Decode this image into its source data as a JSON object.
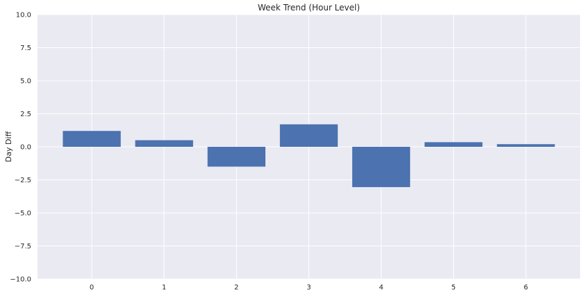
{
  "chart_data": {
    "type": "bar",
    "title": "Week Trend (Hour Level)",
    "xlabel": "",
    "ylabel": "Day Diff",
    "categories": [
      "0",
      "1",
      "2",
      "3",
      "4",
      "5",
      "6"
    ],
    "values": [
      1.2,
      0.5,
      -1.5,
      1.7,
      -3.05,
      0.35,
      0.2
    ],
    "ylim": [
      -10.0,
      10.0
    ],
    "yticks": [
      "−10.0",
      "−7.5",
      "−5.0",
      "−2.5",
      "0.0",
      "2.5",
      "5.0",
      "7.5",
      "10.0"
    ],
    "ytick_values": [
      -10,
      -7.5,
      -5,
      -2.5,
      0,
      2.5,
      5,
      7.5,
      10
    ],
    "grid": true,
    "colors": {
      "bar": "#4c72b0",
      "background": "#eaeaf2",
      "grid": "#ffffff"
    }
  }
}
